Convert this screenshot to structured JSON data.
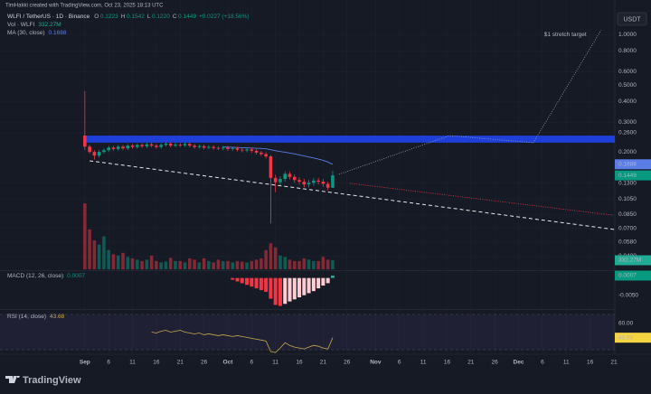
{
  "header": {
    "credit": "TimHakki created with TradingView.com, Oct 23, 2025 18:13 UTC",
    "symbol": "WLFI / TetherUS · 1D · Binance",
    "ohlc": [
      "O",
      "0.1223",
      "H",
      "0.1542",
      "L",
      "0.1220",
      "C",
      "0.1449"
    ],
    "change": "+0.0227 (+18.56%)",
    "currency": "USDT",
    "brand": "TradingView"
  },
  "chart_data": {
    "type": "candlestick",
    "log_scale": true,
    "grid": true,
    "up_color": "#089981",
    "down_color": "#f23645",
    "x": [
      0,
      1,
      2,
      3,
      4,
      5,
      6,
      7,
      8,
      9,
      10,
      11,
      12,
      13,
      14,
      15,
      16,
      17,
      18,
      19,
      20,
      21,
      22,
      23,
      24,
      25,
      26,
      27,
      28,
      29,
      30,
      31,
      32,
      33,
      34,
      35,
      36,
      37,
      38,
      39,
      40,
      41,
      42,
      43,
      44,
      45,
      46,
      47,
      48,
      49,
      50,
      51,
      52
    ],
    "open": [
      0.25,
      0.215,
      0.2,
      0.19,
      0.2,
      0.205,
      0.212,
      0.208,
      0.215,
      0.21,
      0.218,
      0.214,
      0.22,
      0.216,
      0.222,
      0.218,
      0.214,
      0.22,
      0.224,
      0.218,
      0.221,
      0.219,
      0.223,
      0.218,
      0.214,
      0.216,
      0.212,
      0.214,
      0.211,
      0.21,
      0.212,
      0.208,
      0.21,
      0.206,
      0.204,
      0.207,
      0.203,
      0.198,
      0.194,
      0.188,
      0.14,
      0.132,
      0.138,
      0.148,
      0.142,
      0.136,
      0.133,
      0.128,
      0.131,
      0.135,
      0.133,
      0.129,
      0.1223
    ],
    "high": [
      0.46,
      0.22,
      0.205,
      0.205,
      0.21,
      0.217,
      0.217,
      0.22,
      0.22,
      0.223,
      0.223,
      0.225,
      0.225,
      0.227,
      0.227,
      0.223,
      0.225,
      0.229,
      0.229,
      0.226,
      0.226,
      0.228,
      0.228,
      0.223,
      0.221,
      0.221,
      0.219,
      0.219,
      0.216,
      0.217,
      0.217,
      0.215,
      0.215,
      0.211,
      0.212,
      0.212,
      0.208,
      0.203,
      0.199,
      0.192,
      0.146,
      0.143,
      0.153,
      0.153,
      0.147,
      0.141,
      0.138,
      0.136,
      0.14,
      0.14,
      0.138,
      0.133,
      0.1542
    ],
    "low": [
      0.205,
      0.195,
      0.18,
      0.185,
      0.195,
      0.2,
      0.203,
      0.203,
      0.205,
      0.205,
      0.209,
      0.209,
      0.211,
      0.211,
      0.213,
      0.209,
      0.209,
      0.215,
      0.213,
      0.213,
      0.214,
      0.214,
      0.213,
      0.209,
      0.209,
      0.207,
      0.207,
      0.206,
      0.205,
      0.205,
      0.203,
      0.203,
      0.201,
      0.199,
      0.199,
      0.198,
      0.193,
      0.189,
      0.183,
      0.075,
      0.115,
      0.127,
      0.133,
      0.137,
      0.131,
      0.128,
      0.123,
      0.123,
      0.126,
      0.128,
      0.124,
      0.118,
      0.122
    ],
    "close": [
      0.215,
      0.2,
      0.19,
      0.2,
      0.205,
      0.212,
      0.208,
      0.215,
      0.21,
      0.218,
      0.214,
      0.22,
      0.216,
      0.222,
      0.218,
      0.214,
      0.22,
      0.224,
      0.218,
      0.221,
      0.219,
      0.223,
      0.218,
      0.214,
      0.216,
      0.212,
      0.214,
      0.211,
      0.21,
      0.212,
      0.208,
      0.21,
      0.206,
      0.204,
      0.207,
      0.203,
      0.198,
      0.194,
      0.188,
      0.14,
      0.132,
      0.138,
      0.148,
      0.142,
      0.136,
      0.133,
      0.128,
      0.131,
      0.135,
      0.133,
      0.129,
      0.1223,
      0.1449
    ],
    "xlim": [
      -17.8,
      111.2
    ],
    "xticks": [
      {
        "value": 0,
        "label": "Sep"
      },
      {
        "value": 5,
        "label": "6"
      },
      {
        "value": 10,
        "label": "11"
      },
      {
        "value": 15,
        "label": "16"
      },
      {
        "value": 20,
        "label": "21"
      },
      {
        "value": 25,
        "label": "26"
      },
      {
        "value": 30,
        "label": "Oct"
      },
      {
        "value": 35,
        "label": "6"
      },
      {
        "value": 40,
        "label": "11"
      },
      {
        "value": 45,
        "label": "16"
      },
      {
        "value": 50,
        "label": "21"
      },
      {
        "value": 55,
        "label": "26"
      },
      {
        "value": 61,
        "label": "Nov"
      },
      {
        "value": 66,
        "label": "6"
      },
      {
        "value": 71,
        "label": "11"
      },
      {
        "value": 76,
        "label": "16"
      },
      {
        "value": 81,
        "label": "21"
      },
      {
        "value": 86,
        "label": "26"
      },
      {
        "value": 91,
        "label": "Dec"
      },
      {
        "value": 96,
        "label": "6"
      },
      {
        "value": 101,
        "label": "11"
      },
      {
        "value": 106,
        "label": "16"
      },
      {
        "value": 111,
        "label": "21"
      }
    ],
    "ylim": [
      0.04,
      1.3
    ],
    "yticks": [
      {
        "value": 1,
        "label": "1.0000"
      },
      {
        "value": 0.8,
        "label": "0.8000"
      },
      {
        "value": 0.6,
        "label": "0.6000"
      },
      {
        "value": 0.5,
        "label": "0.5000"
      },
      {
        "value": 0.4,
        "label": "0.4000"
      },
      {
        "value": 0.3,
        "label": "0.3000"
      },
      {
        "value": 0.26,
        "label": "0.2600"
      },
      {
        "value": 0.2,
        "label": "0.2000"
      },
      {
        "value": 0.13,
        "label": "0.1300"
      },
      {
        "value": 0.105,
        "label": "0.1050"
      },
      {
        "value": 0.085,
        "label": "0.0850"
      },
      {
        "value": 0.07,
        "label": "0.0700"
      },
      {
        "value": 0.058,
        "label": "0.0580"
      },
      {
        "value": 0.048,
        "label": "0.0480"
      }
    ],
    "volume": {
      "name": "Vol · WLFI",
      "last_value_label": "332.27M",
      "values": [
        2400,
        1450,
        1050,
        900,
        1200,
        700,
        550,
        500,
        600,
        450,
        400,
        350,
        300,
        350,
        500,
        300,
        250,
        280,
        420,
        300,
        300,
        250,
        400,
        350,
        250,
        400,
        300,
        250,
        350,
        300,
        300,
        250,
        300,
        280,
        250,
        300,
        350,
        400,
        700,
        950,
        800,
        500,
        450,
        350,
        300,
        300,
        400,
        350,
        300,
        300,
        450,
        350,
        332.27
      ]
    },
    "ma": {
      "name": "MA (30, close)",
      "color": "#5b7de8",
      "values": [
        null,
        null,
        null,
        null,
        null,
        null,
        null,
        null,
        null,
        null,
        null,
        null,
        null,
        null,
        null,
        null,
        null,
        null,
        null,
        null,
        null,
        null,
        null,
        null,
        null,
        null,
        null,
        null,
        null,
        0.214,
        0.2135,
        0.213,
        0.2125,
        0.212,
        0.2115,
        0.211,
        0.2103,
        0.2095,
        0.2085,
        0.206,
        0.2035,
        0.201,
        0.199,
        0.1968,
        0.1945,
        0.192,
        0.1893,
        0.1866,
        0.184,
        0.1812,
        0.1782,
        0.174,
        0.1688
      ]
    },
    "macd": {
      "name": "MACD (12, 26, close)",
      "ylim": [
        -0.009,
        0.002
      ],
      "yticks": [
        {
          "value": -0.005,
          "label": "-0.0050"
        }
      ],
      "values": [
        null,
        null,
        null,
        null,
        null,
        null,
        null,
        null,
        null,
        null,
        null,
        null,
        null,
        null,
        null,
        null,
        null,
        null,
        null,
        null,
        null,
        null,
        null,
        null,
        null,
        null,
        null,
        null,
        null,
        null,
        null,
        -0.0005,
        -0.001,
        -0.0015,
        -0.002,
        -0.0025,
        -0.003,
        -0.0035,
        -0.004,
        -0.006,
        -0.0078,
        -0.0081,
        -0.0075,
        -0.0068,
        -0.0062,
        -0.0056,
        -0.005,
        -0.0044,
        -0.0038,
        -0.003,
        -0.0022,
        -0.0015,
        0.0007
      ]
    },
    "rsi": {
      "name": "RSI (14, close)",
      "color": "#c8a84b",
      "ylim": [
        25,
        75
      ],
      "band": [
        30,
        70
      ],
      "yticks": [
        {
          "value": 60,
          "label": "60.00"
        }
      ],
      "values": [
        null,
        null,
        null,
        null,
        null,
        null,
        null,
        null,
        null,
        null,
        null,
        null,
        null,
        null,
        50,
        49,
        51,
        52,
        50,
        51,
        52,
        50,
        49,
        48,
        49,
        47,
        48,
        47,
        46,
        47,
        46,
        45,
        46,
        45,
        44,
        43,
        42,
        41,
        40,
        28,
        27,
        32,
        38,
        35,
        33,
        32,
        31,
        33,
        35,
        34,
        32,
        31,
        43.68
      ]
    },
    "annotations": {
      "zone": {
        "color": "#1e3fd8",
        "x": [
          0,
          111.2
        ],
        "y": [
          0.227,
          0.25
        ]
      },
      "support_line": {
        "x": [
          1,
          111.2
        ],
        "y": [
          0.177,
          0.069
        ]
      },
      "red_projection": {
        "x": [
          55.6,
          110.8
        ],
        "y": [
          0.13,
          0.084
        ]
      },
      "target_path": {
        "x": [
          53.3,
          76.5,
          94.1,
          108.3
        ],
        "y": [
          0.147,
          0.25,
          0.227,
          1.06
        ]
      },
      "target_label": "$1 stretch target"
    }
  }
}
